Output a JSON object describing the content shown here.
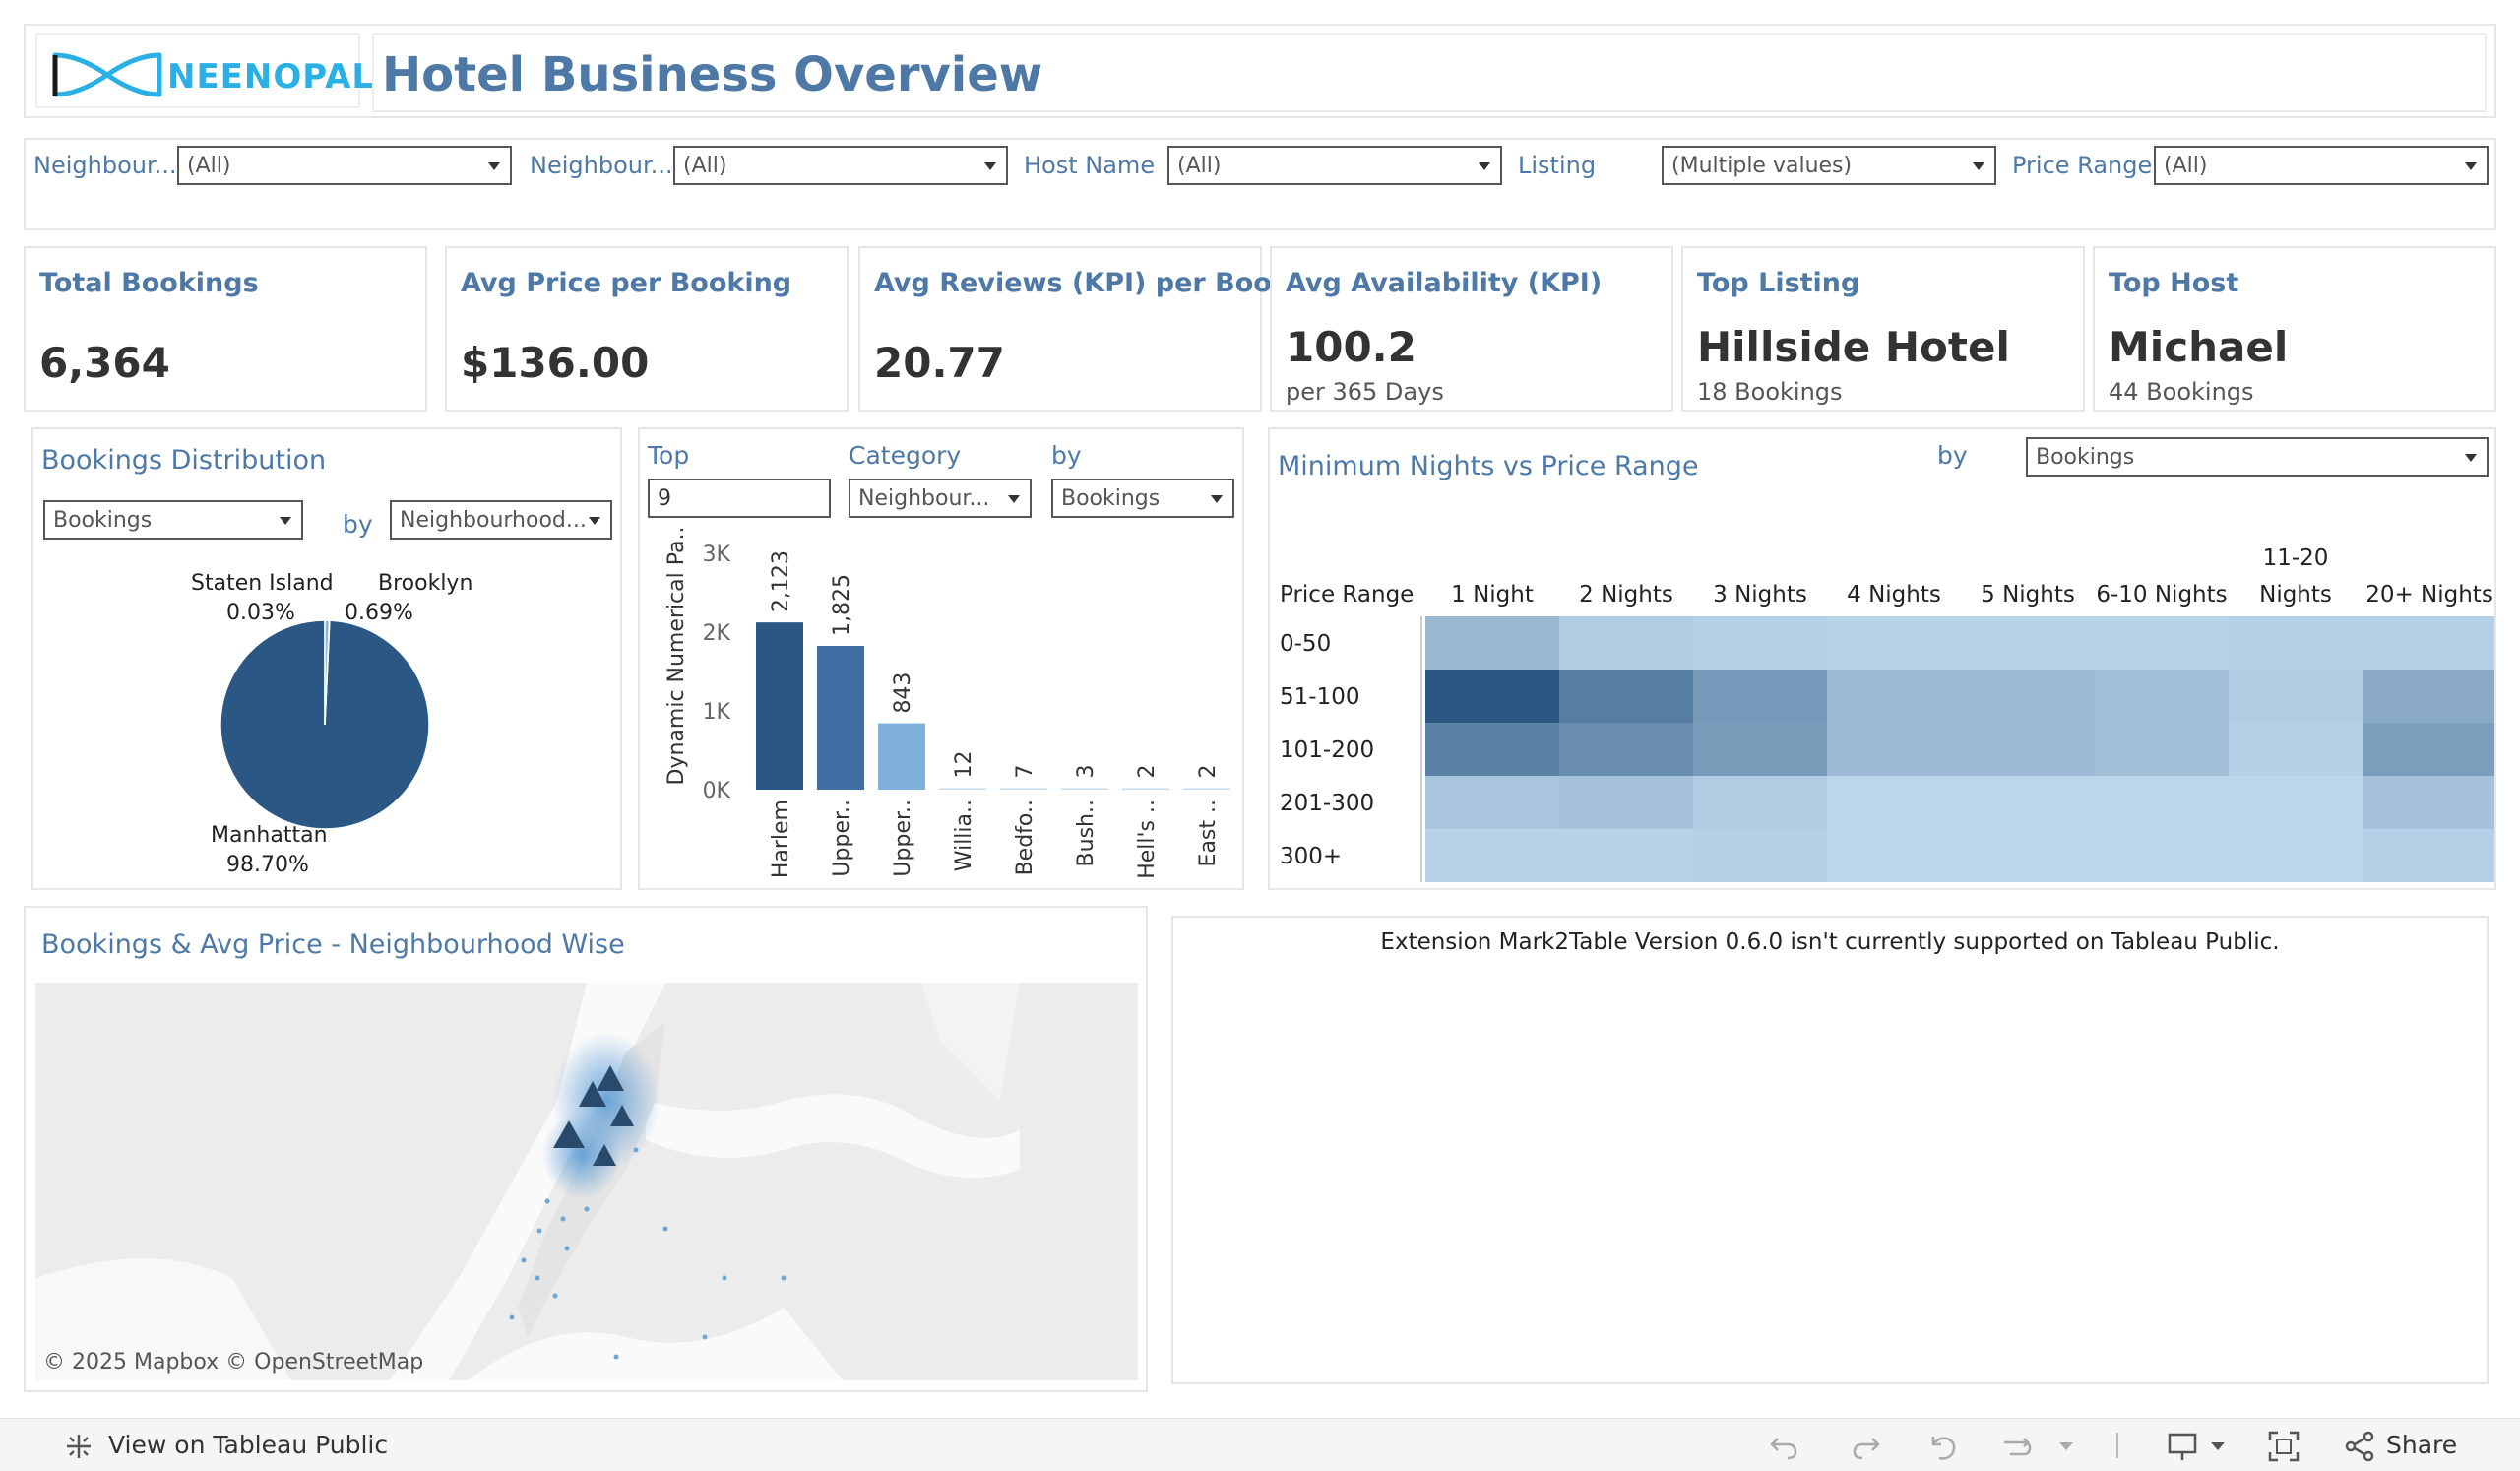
{
  "header": {
    "logo_text": "NEENOPAL",
    "title": "Hotel Business Overview"
  },
  "filters": [
    {
      "label": "Neighbour...",
      "value": "(All)"
    },
    {
      "label": "Neighbour...",
      "value": "(All)"
    },
    {
      "label": "Host Name",
      "value": "(All)"
    },
    {
      "label": "Listing",
      "value": "(Multiple values)"
    },
    {
      "label": "Price Range",
      "value": "(All)"
    }
  ],
  "kpis": [
    {
      "title": "Total Bookings",
      "value": "6,364",
      "sub": ""
    },
    {
      "title": "Avg Price per Booking",
      "value": "$136.00",
      "sub": ""
    },
    {
      "title": "Avg Reviews (KPI) per Booking",
      "value": "20.77",
      "sub": ""
    },
    {
      "title": "Avg Availability (KPI)",
      "value": "100.2",
      "sub": "per 365 Days"
    },
    {
      "title": "Top Listing",
      "value": "Hillside Hotel",
      "sub": "18 Bookings"
    },
    {
      "title": "Top Host",
      "value": "Michael",
      "sub": "44 Bookings"
    }
  ],
  "pie_panel": {
    "title": "Bookings Distribution",
    "measure_select": "Bookings",
    "by_label": "by",
    "dimension_select": "Neighbourhood...",
    "labels": {
      "staten_island": "Staten Island",
      "staten_island_pct": "0.03%",
      "brooklyn": "Brooklyn",
      "brooklyn_pct": "0.69%",
      "manhattan": "Manhattan",
      "manhattan_pct": "98.70%"
    }
  },
  "bar_panel": {
    "top_label": "Top",
    "top_value": "9",
    "category_label": "Category",
    "category_select": "Neighbour...",
    "by_label": "by",
    "by_select": "Bookings"
  },
  "heatmap_panel": {
    "title": "Minimum Nights vs Price Range",
    "by_label": "by",
    "by_select": "Bookings",
    "row_header": "Price Range"
  },
  "map_panel": {
    "title": "Bookings & Avg Price - Neighbourhood Wise",
    "attribution": "© 2025 Mapbox  © OpenStreetMap"
  },
  "extension_panel": {
    "message": "Extension Mark2Table Version 0.6.0 isn't currently supported on Tableau Public."
  },
  "toolbar": {
    "view_label": "View on Tableau Public",
    "share_label": "Share"
  },
  "chart_data": [
    {
      "type": "pie",
      "categories": [
        "Manhattan",
        "Brooklyn",
        "Staten Island"
      ],
      "values": [
        98.7,
        0.69,
        0.03
      ],
      "colors": [
        "#2a5783",
        "#8fb6d9",
        "#c9dbeb"
      ]
    },
    {
      "type": "bar",
      "categories": [
        "Harlem",
        "Upper..",
        "Upper..",
        "Willia..",
        "Bedfo..",
        "Bush..",
        "Hell's ..",
        "East .."
      ],
      "values": [
        2123,
        1825,
        843,
        12,
        7,
        3,
        2,
        2
      ],
      "value_labels": [
        "2,123",
        "1,825",
        "843",
        "12",
        "7",
        "3",
        "2",
        "2"
      ],
      "ylabel": "Dynamic Numerical Pa..",
      "yticks": [
        "3K",
        "2K",
        "1K",
        "0K"
      ],
      "ylim": [
        0,
        3000
      ],
      "colors": [
        "#2a5783",
        "#3f6fa3",
        "#7fb0d9",
        "#c6dbef",
        "#c6dbef",
        "#c6dbef",
        "#c6dbef",
        "#c6dbef"
      ]
    },
    {
      "type": "heatmap",
      "columns": [
        "1 Night",
        "2 Nights",
        "3 Nights",
        "4 Nights",
        "5 Nights",
        "6-10 Nights",
        "11-20 Nights",
        "20+ Nights"
      ],
      "rows": [
        "0-50",
        "51-100",
        "101-200",
        "201-300",
        "300+"
      ],
      "values": [
        [
          0.3,
          0.15,
          0.12,
          0.1,
          0.1,
          0.1,
          0.12,
          0.12
        ],
        [
          1.0,
          0.72,
          0.52,
          0.28,
          0.28,
          0.25,
          0.15,
          0.4
        ],
        [
          0.7,
          0.6,
          0.5,
          0.28,
          0.28,
          0.25,
          0.12,
          0.48
        ],
        [
          0.2,
          0.22,
          0.15,
          0.08,
          0.08,
          0.08,
          0.08,
          0.22
        ],
        [
          0.1,
          0.1,
          0.12,
          0.08,
          0.08,
          0.08,
          0.08,
          0.12
        ]
      ]
    }
  ]
}
